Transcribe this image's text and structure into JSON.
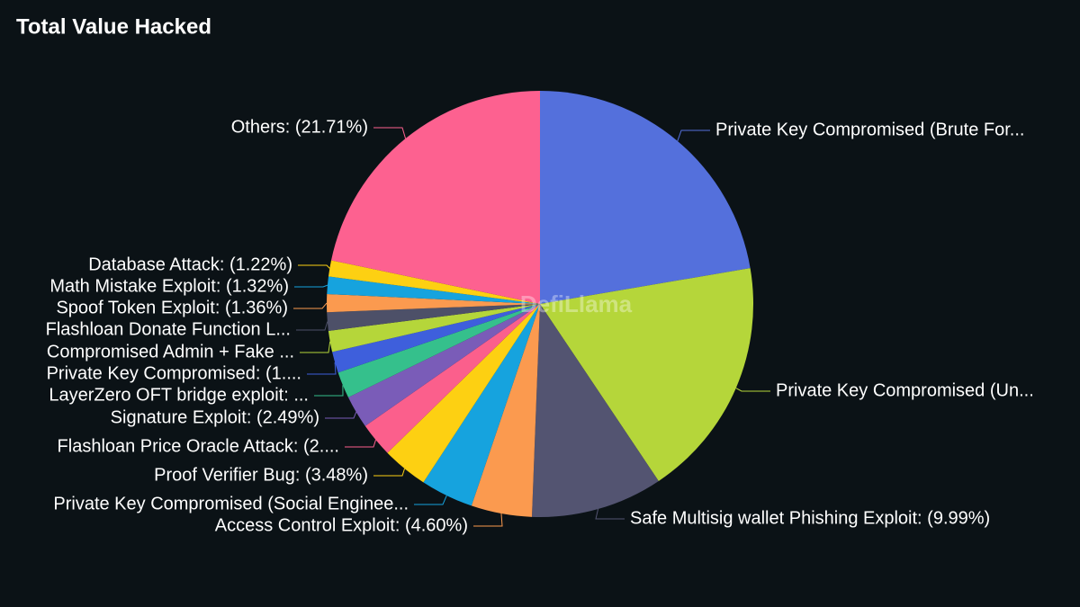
{
  "chart_data": {
    "type": "pie",
    "title": "Total Value Hacked",
    "watermark": "DefiLlama",
    "categories": [
      "Private Key Compromised (Brute For...",
      "Private Key Compromised (Un...",
      "Safe Multisig wallet Phishing Exploit: (9.99%)",
      "Access Control Exploit: (4.60%)",
      "Private Key Compromised (Social Enginee...",
      "Proof Verifier Bug: (3.48%)",
      "Flashloan Price Oracle Attack: (2....",
      "Signature Exploit: (2.49%)",
      "LayerZero OFT bridge exploit: ...",
      "Private Key Compromised: (1....",
      "Compromised Admin + Fake ...",
      "Flashloan Donate Function L...",
      "Spoof Token Exploit: (1.36%)",
      "Math Mistake Exploit: (1.32%)",
      "Database Attack: (1.22%)",
      "Others: (21.71%)"
    ],
    "values": [
      22.3,
      18.3,
      9.99,
      4.6,
      4.0,
      3.48,
      2.6,
      2.49,
      2.0,
      1.6,
      1.6,
      1.4,
      1.36,
      1.32,
      1.22,
      21.71
    ],
    "colors": [
      "#5470dc",
      "#b5d63a",
      "#535471",
      "#fb9a4f",
      "#16a3de",
      "#fdd012",
      "#fb5f8c",
      "#7a5cb8",
      "#35c08c",
      "#3e5fdc",
      "#b5d63a",
      "#4d5068",
      "#fb9a4f",
      "#16a3de",
      "#fdd012",
      "#fd6190"
    ]
  }
}
